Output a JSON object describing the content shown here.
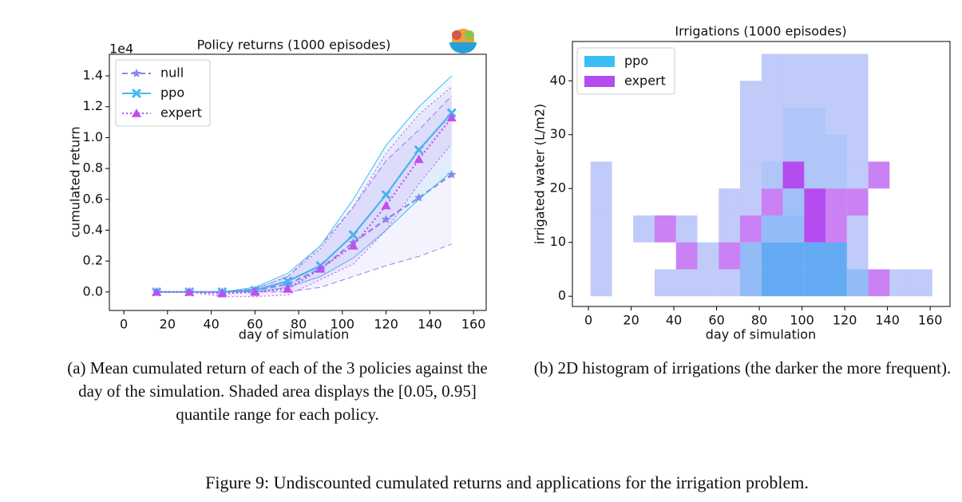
{
  "chart_data": [
    {
      "type": "line",
      "title": "Policy returns (1000 episodes)",
      "offset_label": "1e4",
      "x_label": "day of simulation",
      "y_label": "cumulated return",
      "x": [
        15,
        30,
        45,
        60,
        75,
        90,
        105,
        120,
        135,
        150
      ],
      "series": [
        {
          "name": "null",
          "color": "#8a86ec",
          "linestyle": "dashed",
          "marker": "star",
          "values": [
            0,
            0,
            0,
            0.01,
            0.05,
            0.15,
            0.32,
            0.47,
            0.61,
            0.76
          ],
          "lower": [
            0,
            0,
            0,
            0,
            0,
            0.03,
            0.1,
            0.17,
            0.23,
            0.31
          ],
          "upper": [
            0,
            0,
            0,
            0.02,
            0.1,
            0.3,
            0.55,
            0.85,
            1.05,
            1.27
          ]
        },
        {
          "name": "ppo",
          "color": "#3fbcf0",
          "linestyle": "solid",
          "marker": "x",
          "values": [
            0,
            0,
            0,
            0.01,
            0.07,
            0.17,
            0.37,
            0.63,
            0.92,
            1.16
          ],
          "lower": [
            0,
            0,
            0,
            0,
            0.03,
            0.1,
            0.22,
            0.4,
            0.6,
            0.78
          ],
          "upper": [
            0,
            0,
            0,
            0.03,
            0.12,
            0.3,
            0.6,
            0.95,
            1.2,
            1.4
          ]
        },
        {
          "name": "expert",
          "color": "#c04ef2",
          "linestyle": "dotted",
          "marker": "triangle",
          "values": [
            0,
            0,
            -0.01,
            0,
            0.02,
            0.15,
            0.3,
            0.56,
            0.86,
            1.13
          ],
          "lower": [
            0,
            0,
            -0.03,
            -0.03,
            -0.02,
            0.08,
            0.18,
            0.4,
            0.7,
            0.96
          ],
          "upper": [
            0,
            0,
            0,
            0.02,
            0.1,
            0.28,
            0.55,
            0.9,
            1.15,
            1.33
          ]
        }
      ],
      "xlim": [
        -6.6,
        165.8
      ],
      "xticks": [
        0,
        20,
        40,
        60,
        80,
        100,
        120,
        140,
        160
      ],
      "ylim": [
        -0.12,
        1.54
      ],
      "yticks": [
        {
          "value": 0,
          "label": "0.0"
        },
        0.2,
        0.4,
        0.6,
        0.8,
        {
          "value": 1,
          "label": "1.0"
        },
        1.2,
        1.4
      ],
      "legend": "upper left",
      "caption": "(a) Mean cumulated return of each of the 3 policies against the day of the simulation. Shaded area displays the [0.05, 0.95] quantile range for each policy."
    },
    {
      "type": "hist2d",
      "title": "Irrigations (1000 episodes)",
      "x_label": "day of simulation",
      "y_label": "irrigated water (L/m2)",
      "xbins": [
        1,
        11,
        21,
        31,
        41,
        51,
        61,
        71,
        81,
        91,
        101,
        111,
        121,
        131,
        141,
        151,
        161
      ],
      "ybins": [
        0,
        5,
        10,
        15,
        20,
        25,
        30,
        35,
        40,
        45
      ],
      "series": [
        {
          "name": "ppo",
          "color": "#3dbdf5",
          "counts": [
            [
              3,
              0,
              0,
              3,
              3,
              3,
              3,
              6,
              9,
              9,
              9,
              9,
              6,
              0,
              3,
              3
            ],
            [
              3,
              0,
              0,
              0,
              0,
              3,
              0,
              6,
              9,
              9,
              9,
              9,
              3,
              0,
              0,
              0
            ],
            [
              3,
              0,
              3,
              0,
              3,
              0,
              3,
              0,
              6,
              6,
              0,
              0,
              3,
              0,
              0,
              0
            ],
            [
              3,
              0,
              0,
              0,
              0,
              0,
              3,
              3,
              0,
              5,
              0,
              0,
              0,
              0,
              0,
              0
            ],
            [
              3,
              0,
              0,
              0,
              0,
              0,
              0,
              3,
              4,
              0,
              4,
              4,
              3,
              0,
              0,
              0
            ],
            [
              0,
              0,
              0,
              0,
              0,
              0,
              0,
              3,
              3,
              4,
              4,
              4,
              3,
              0,
              0,
              0
            ],
            [
              0,
              0,
              0,
              0,
              0,
              0,
              0,
              3,
              3,
              4,
              4,
              3,
              3,
              0,
              0,
              0
            ],
            [
              0,
              0,
              0,
              0,
              0,
              0,
              0,
              3,
              3,
              3,
              3,
              3,
              3,
              0,
              0,
              0
            ],
            [
              0,
              0,
              0,
              0,
              0,
              0,
              0,
              0,
              3,
              3,
              3,
              3,
              3,
              0,
              0,
              0
            ]
          ]
        },
        {
          "name": "expert",
          "color": "#b44cf0",
          "counts": [
            [
              2,
              0,
              0,
              2,
              2,
              2,
              2,
              2,
              2,
              2,
              2,
              2,
              2,
              7,
              2,
              2
            ],
            [
              2,
              0,
              0,
              0,
              7,
              2,
              7,
              2,
              2,
              2,
              2,
              2,
              2,
              0,
              0,
              0
            ],
            [
              2,
              0,
              2,
              7,
              2,
              0,
              2,
              7,
              2,
              2,
              10,
              7,
              2,
              0,
              0,
              0
            ],
            [
              2,
              0,
              0,
              0,
              0,
              0,
              2,
              2,
              7,
              2,
              10,
              7,
              7,
              0,
              0,
              0
            ],
            [
              2,
              0,
              0,
              0,
              0,
              0,
              0,
              2,
              2,
              10,
              2,
              2,
              2,
              7,
              0,
              0
            ],
            [
              0,
              0,
              0,
              0,
              0,
              0,
              0,
              2,
              2,
              2,
              2,
              2,
              2,
              0,
              0,
              0
            ],
            [
              0,
              0,
              0,
              0,
              0,
              0,
              0,
              2,
              2,
              2,
              2,
              2,
              2,
              0,
              0,
              0
            ],
            [
              0,
              0,
              0,
              0,
              0,
              0,
              0,
              2,
              2,
              2,
              2,
              2,
              2,
              0,
              0,
              0
            ],
            [
              0,
              0,
              0,
              0,
              0,
              0,
              0,
              0,
              2,
              2,
              2,
              2,
              2,
              0,
              0,
              0
            ]
          ]
        }
      ],
      "xlim": [
        -7.5,
        169.3
      ],
      "xticks": [
        0,
        20,
        40,
        60,
        80,
        100,
        120,
        140,
        160
      ],
      "ylim": [
        -1.9,
        47.3
      ],
      "yticks": [
        0,
        10,
        20,
        30,
        40
      ],
      "legend": "upper left",
      "caption": "(b) 2D histogram of irrigations (the darker the more frequent)."
    }
  ],
  "figure_caption": "Figure 9: Undiscounted cumulated returns and applications for the irrigation problem."
}
